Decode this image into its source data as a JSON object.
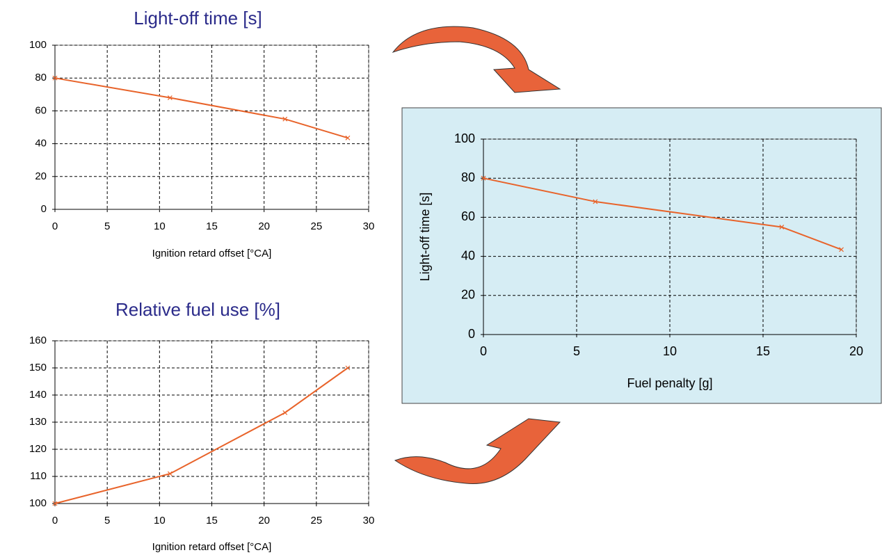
{
  "chart_data": [
    {
      "type": "line",
      "title": "Light-off time [s]",
      "x_label": "Ignition retard offset [°CA]",
      "x": [
        0,
        11,
        22,
        28
      ],
      "values": [
        80,
        68,
        55,
        43.5
      ],
      "color": "#e8632a",
      "marker": "x",
      "xlim": [
        0,
        30
      ],
      "xticks": [
        0,
        5,
        10,
        15,
        20,
        25,
        30
      ],
      "ylim": [
        0,
        100
      ],
      "yticks": [
        0,
        20,
        40,
        60,
        80,
        100
      ],
      "grid": true
    },
    {
      "type": "line",
      "title": "Relative fuel use [%]",
      "x_label": "Ignition retard offset [°CA]",
      "x": [
        0,
        11,
        22,
        28
      ],
      "values": [
        100,
        111,
        133.5,
        150
      ],
      "color": "#e8632a",
      "marker": "x",
      "xlim": [
        0,
        30
      ],
      "xticks": [
        0,
        5,
        10,
        15,
        20,
        25,
        30
      ],
      "ylim": [
        100,
        160
      ],
      "yticks": [
        100,
        110,
        120,
        130,
        140,
        150,
        160
      ],
      "grid": true
    },
    {
      "type": "line",
      "x_label": "Fuel penalty [g]",
      "y_label": "Light-off time [s]",
      "x": [
        0,
        6,
        16,
        19.2
      ],
      "values": [
        80,
        68,
        55,
        43.5
      ],
      "color": "#e8632a",
      "marker": "x",
      "xlim": [
        0,
        20
      ],
      "xticks": [
        0,
        5,
        10,
        15,
        20
      ],
      "ylim": [
        0,
        100
      ],
      "yticks": [
        0,
        20,
        40,
        60,
        80,
        100
      ],
      "grid": true
    }
  ]
}
